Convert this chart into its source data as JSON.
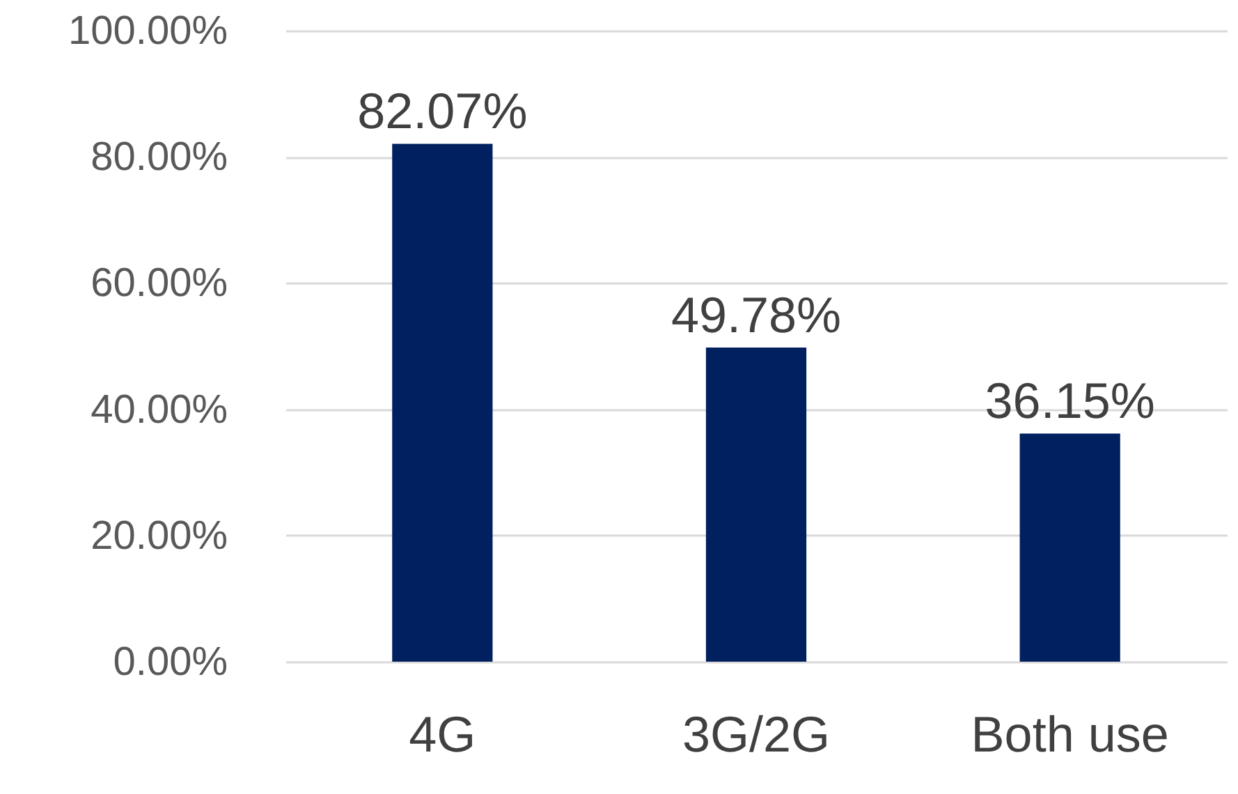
{
  "chart_data": {
    "type": "bar",
    "categories": [
      "4G",
      "3G/2G",
      "Both use"
    ],
    "values": [
      82.07,
      49.78,
      36.15
    ],
    "color": "#002060",
    "value_labels": [
      "82.07%",
      "49.78%",
      "36.15%"
    ],
    "ylim": [
      0,
      100
    ],
    "yticks": [
      {
        "value": 0,
        "label": "0.00%"
      },
      {
        "value": 20,
        "label": "20.00%"
      },
      {
        "value": 40,
        "label": "40.00%"
      },
      {
        "value": 60,
        "label": "60.00%"
      },
      {
        "value": 80,
        "label": "80.00%"
      },
      {
        "value": 100,
        "label": "100.00%"
      }
    ],
    "grid": "y"
  }
}
